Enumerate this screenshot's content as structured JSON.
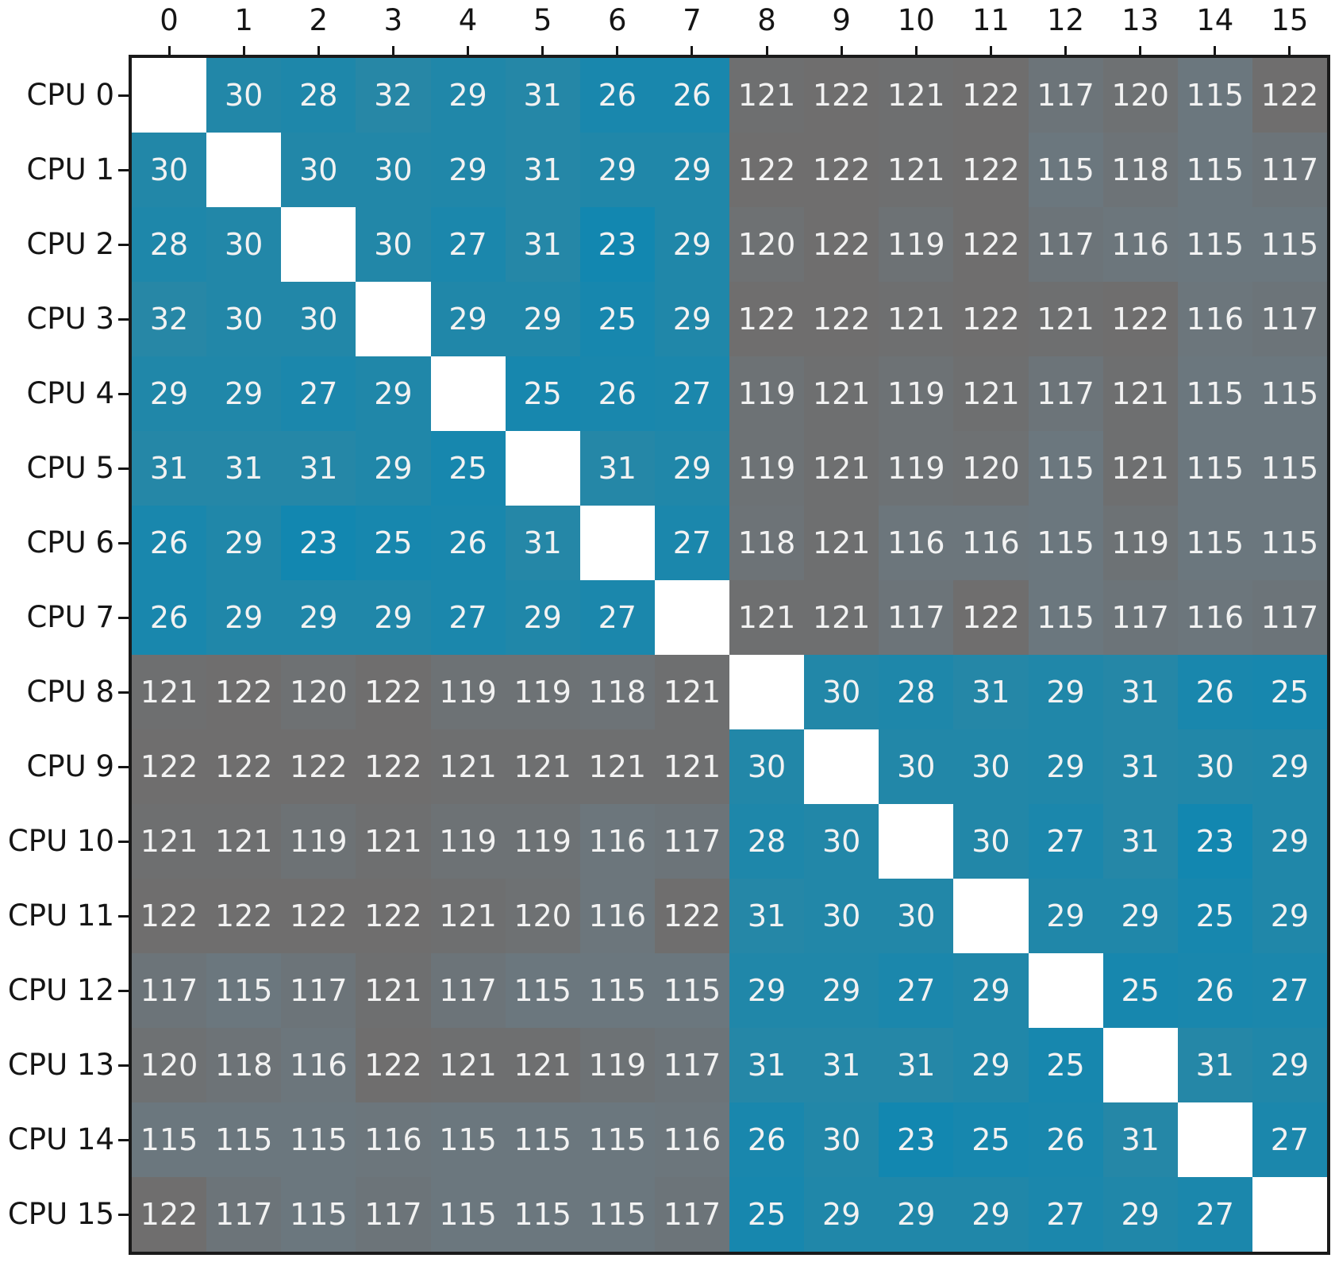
{
  "chart_data": {
    "type": "heatmap",
    "x_labels": [
      "0",
      "1",
      "2",
      "3",
      "4",
      "5",
      "6",
      "7",
      "8",
      "9",
      "10",
      "11",
      "12",
      "13",
      "14",
      "15"
    ],
    "y_labels": [
      "CPU 0",
      "CPU 1",
      "CPU 2",
      "CPU 3",
      "CPU 4",
      "CPU 5",
      "CPU 6",
      "CPU 7",
      "CPU 8",
      "CPU 9",
      "CPU 10",
      "CPU 11",
      "CPU 12",
      "CPU 13",
      "CPU 14",
      "CPU 15"
    ],
    "matrix": [
      [
        null,
        30,
        28,
        32,
        29,
        31,
        26,
        26,
        121,
        122,
        121,
        122,
        117,
        120,
        115,
        122
      ],
      [
        30,
        null,
        30,
        30,
        29,
        31,
        29,
        29,
        122,
        122,
        121,
        122,
        115,
        118,
        115,
        117
      ],
      [
        28,
        30,
        null,
        30,
        27,
        31,
        23,
        29,
        120,
        122,
        119,
        122,
        117,
        116,
        115,
        115
      ],
      [
        32,
        30,
        30,
        null,
        29,
        29,
        25,
        29,
        122,
        122,
        121,
        122,
        121,
        122,
        116,
        117
      ],
      [
        29,
        29,
        27,
        29,
        null,
        25,
        26,
        27,
        119,
        121,
        119,
        121,
        117,
        121,
        115,
        115
      ],
      [
        31,
        31,
        31,
        29,
        25,
        null,
        31,
        29,
        119,
        121,
        119,
        120,
        115,
        121,
        115,
        115
      ],
      [
        26,
        29,
        23,
        25,
        26,
        31,
        null,
        27,
        118,
        121,
        116,
        116,
        115,
        119,
        115,
        115
      ],
      [
        26,
        29,
        29,
        29,
        27,
        29,
        27,
        null,
        121,
        121,
        117,
        122,
        115,
        117,
        116,
        117
      ],
      [
        121,
        122,
        120,
        122,
        119,
        119,
        118,
        121,
        null,
        30,
        28,
        31,
        29,
        31,
        26,
        25
      ],
      [
        122,
        122,
        122,
        122,
        121,
        121,
        121,
        121,
        30,
        null,
        30,
        30,
        29,
        31,
        30,
        29
      ],
      [
        121,
        121,
        119,
        121,
        119,
        119,
        116,
        117,
        28,
        30,
        null,
        30,
        27,
        31,
        23,
        29
      ],
      [
        122,
        122,
        122,
        122,
        121,
        120,
        116,
        122,
        31,
        30,
        30,
        null,
        29,
        29,
        25,
        29
      ],
      [
        117,
        115,
        117,
        121,
        117,
        115,
        115,
        115,
        29,
        29,
        27,
        29,
        null,
        25,
        26,
        27
      ],
      [
        120,
        118,
        116,
        122,
        121,
        121,
        119,
        117,
        31,
        31,
        31,
        29,
        25,
        null,
        31,
        29
      ],
      [
        115,
        115,
        115,
        116,
        115,
        115,
        115,
        116,
        26,
        30,
        23,
        25,
        26,
        31,
        null,
        27
      ],
      [
        122,
        117,
        115,
        117,
        115,
        115,
        115,
        117,
        25,
        29,
        29,
        29,
        27,
        29,
        27,
        null
      ]
    ],
    "value_ranges": {
      "low": [
        23,
        32
      ],
      "high": [
        115,
        122
      ]
    },
    "diagonal": "blank",
    "grid_rows": 16,
    "grid_cols": 16,
    "legend": "none",
    "title": ""
  },
  "colors": {
    "background": "#ffffff",
    "cell_text": "#f2f2f2",
    "axis_text": "#151515",
    "plot_border": "#1a1a1a",
    "diagonal_cell": "#ffffff",
    "blue_min": "#1287b0",
    "blue_max": "#2787a6",
    "gray_min": "#6b777e",
    "gray_max": "#6f6e6e"
  }
}
